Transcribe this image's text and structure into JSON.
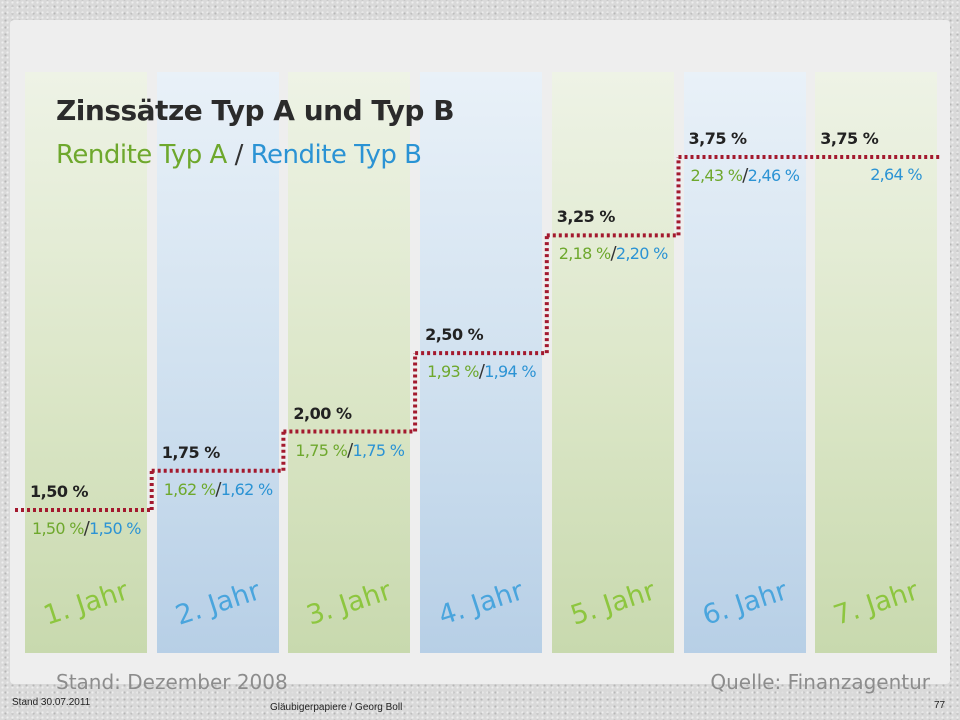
{
  "chart_data": {
    "type": "line",
    "title": "Zinssätze Typ A und Typ B",
    "subtitle": {
      "a": "Rendite Typ A",
      "separator": "/",
      "b": "Rendite Typ B"
    },
    "categories": [
      "1. Jahr",
      "2. Jahr",
      "3. Jahr",
      "4. Jahr",
      "5. Jahr",
      "6. Jahr",
      "7. Jahr"
    ],
    "series": [
      {
        "name": "Zinssatz",
        "values": [
          1.5,
          1.75,
          2.0,
          2.5,
          3.25,
          3.75,
          3.75
        ]
      },
      {
        "name": "Rendite Typ A",
        "values": [
          1.5,
          1.62,
          1.75,
          1.93,
          2.18,
          2.43,
          null
        ]
      },
      {
        "name": "Rendite Typ B",
        "values": [
          1.5,
          1.62,
          1.75,
          1.94,
          2.2,
          2.46,
          2.64
        ]
      }
    ],
    "rate_labels": [
      "1,50 %",
      "1,75 %",
      "2,00 %",
      "2,50 %",
      "3,25 %",
      "3,75 %",
      "3,75 %"
    ],
    "yield_a_labels": [
      "1,50 %",
      "1,62 %",
      "1,75 %",
      "1,93 %",
      "2,18 %",
      "2,43 %",
      ""
    ],
    "yield_b_labels": [
      "1,50 %",
      "1,62 %",
      "1,75 %",
      "1,94 %",
      "2,20 %",
      "2,46 %",
      "2,64 %"
    ],
    "column_colors": [
      "green",
      "blue",
      "green",
      "blue",
      "green",
      "blue",
      "green"
    ],
    "ylim": [
      0,
      4.2
    ],
    "grid": false,
    "legend": "top-left"
  },
  "source": {
    "stand": "Stand: Dezember 2008",
    "quelle": "Quelle: Finanzagentur"
  },
  "slide": {
    "date": "Stand 30.07.2011",
    "footer": "Gläubigerpapiere / Georg Boll",
    "page": "77"
  },
  "colors": {
    "green": "#6ea82d",
    "blue": "#2b93d4",
    "step_line": "#a3192e"
  }
}
